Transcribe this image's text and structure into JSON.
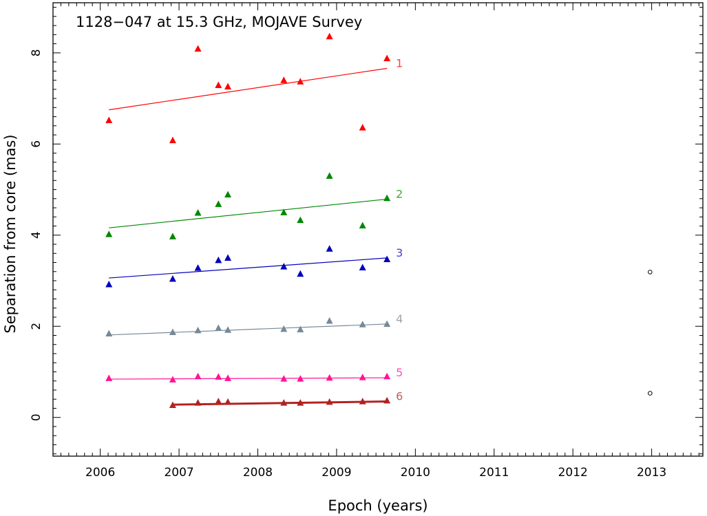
{
  "chart_data": {
    "type": "scatter",
    "title": "1128−047 at 15.3 GHz, MOJAVE Survey",
    "xlabel": "Epoch (years)",
    "ylabel": "Separation from core (mas)",
    "xlim": [
      2005.4,
      2013.65
    ],
    "ylim": [
      -0.85,
      9.1
    ],
    "x_ticks": [
      2006,
      2007,
      2008,
      2009,
      2010,
      2011,
      2012,
      2013
    ],
    "y_ticks": [
      0,
      2,
      4,
      6,
      8
    ],
    "x_tick_labels": [
      "2006",
      "2007",
      "2008",
      "2009",
      "2010",
      "2011",
      "2012",
      "2013"
    ],
    "y_tick_labels": [
      "0",
      "2",
      "4",
      "6",
      "8"
    ],
    "series": [
      {
        "name": "1",
        "color": "#ff0000",
        "marker": "triangle",
        "points": [
          [
            2006.11,
            6.51
          ],
          [
            2006.92,
            6.07
          ],
          [
            2007.24,
            8.08
          ],
          [
            2007.5,
            7.28
          ],
          [
            2007.62,
            7.25
          ],
          [
            2008.33,
            7.39
          ],
          [
            2008.54,
            7.36
          ],
          [
            2008.91,
            8.35
          ],
          [
            2009.33,
            6.35
          ],
          [
            2009.64,
            7.87
          ]
        ],
        "fit": [
          [
            2006.11,
            6.75
          ],
          [
            2009.64,
            7.66
          ]
        ]
      },
      {
        "name": "2",
        "color": "#008800",
        "marker": "triangle",
        "points": [
          [
            2006.11,
            4.01
          ],
          [
            2006.92,
            3.96
          ],
          [
            2007.24,
            4.48
          ],
          [
            2007.5,
            4.67
          ],
          [
            2007.62,
            4.88
          ],
          [
            2008.33,
            4.49
          ],
          [
            2008.54,
            4.32
          ],
          [
            2008.91,
            5.29
          ],
          [
            2009.33,
            4.2
          ],
          [
            2009.64,
            4.8
          ]
        ],
        "fit": [
          [
            2006.11,
            4.16
          ],
          [
            2009.64,
            4.79
          ]
        ]
      },
      {
        "name": "3",
        "color": "#0000bb",
        "marker": "triangle",
        "points": [
          [
            2006.11,
            2.91
          ],
          [
            2006.92,
            3.03
          ],
          [
            2007.24,
            3.27
          ],
          [
            2007.5,
            3.44
          ],
          [
            2007.62,
            3.49
          ],
          [
            2008.33,
            3.3
          ],
          [
            2008.54,
            3.14
          ],
          [
            2008.91,
            3.69
          ],
          [
            2009.33,
            3.28
          ],
          [
            2009.64,
            3.46
          ]
        ],
        "fit": [
          [
            2006.11,
            3.06
          ],
          [
            2009.64,
            3.5
          ]
        ]
      },
      {
        "name": "4",
        "color": "#778899",
        "marker": "triangle",
        "points": [
          [
            2006.11,
            1.83
          ],
          [
            2006.92,
            1.86
          ],
          [
            2007.24,
            1.9
          ],
          [
            2007.5,
            1.95
          ],
          [
            2007.62,
            1.91
          ],
          [
            2008.33,
            1.93
          ],
          [
            2008.54,
            1.92
          ],
          [
            2008.91,
            2.11
          ],
          [
            2009.33,
            2.03
          ],
          [
            2009.64,
            2.04
          ]
        ],
        "fit": [
          [
            2006.11,
            1.81
          ],
          [
            2009.64,
            2.05
          ]
        ]
      },
      {
        "name": "5",
        "color": "#ff1493",
        "marker": "triangle",
        "points": [
          [
            2006.11,
            0.85
          ],
          [
            2006.92,
            0.82
          ],
          [
            2007.24,
            0.89
          ],
          [
            2007.5,
            0.88
          ],
          [
            2007.62,
            0.85
          ],
          [
            2008.33,
            0.84
          ],
          [
            2008.54,
            0.84
          ],
          [
            2008.91,
            0.86
          ],
          [
            2009.33,
            0.87
          ],
          [
            2009.64,
            0.89
          ]
        ],
        "fit": [
          [
            2006.11,
            0.84
          ],
          [
            2009.64,
            0.87
          ]
        ]
      },
      {
        "name": "6",
        "color": "#b22222",
        "marker": "triangle",
        "points": [
          [
            2006.92,
            0.26
          ],
          [
            2007.24,
            0.31
          ],
          [
            2007.5,
            0.34
          ],
          [
            2007.62,
            0.33
          ],
          [
            2008.33,
            0.31
          ],
          [
            2008.54,
            0.31
          ],
          [
            2008.91,
            0.33
          ],
          [
            2009.33,
            0.34
          ],
          [
            2009.64,
            0.36
          ]
        ],
        "fit": [
          [
            2006.92,
            0.28
          ],
          [
            2009.64,
            0.35
          ]
        ]
      },
      {
        "name": "",
        "color": "#000000",
        "marker": "open-circle",
        "points": [
          [
            2012.98,
            3.19
          ],
          [
            2012.98,
            0.53
          ]
        ]
      }
    ],
    "grid": false,
    "legend": "series labels at right end of fit lines"
  }
}
